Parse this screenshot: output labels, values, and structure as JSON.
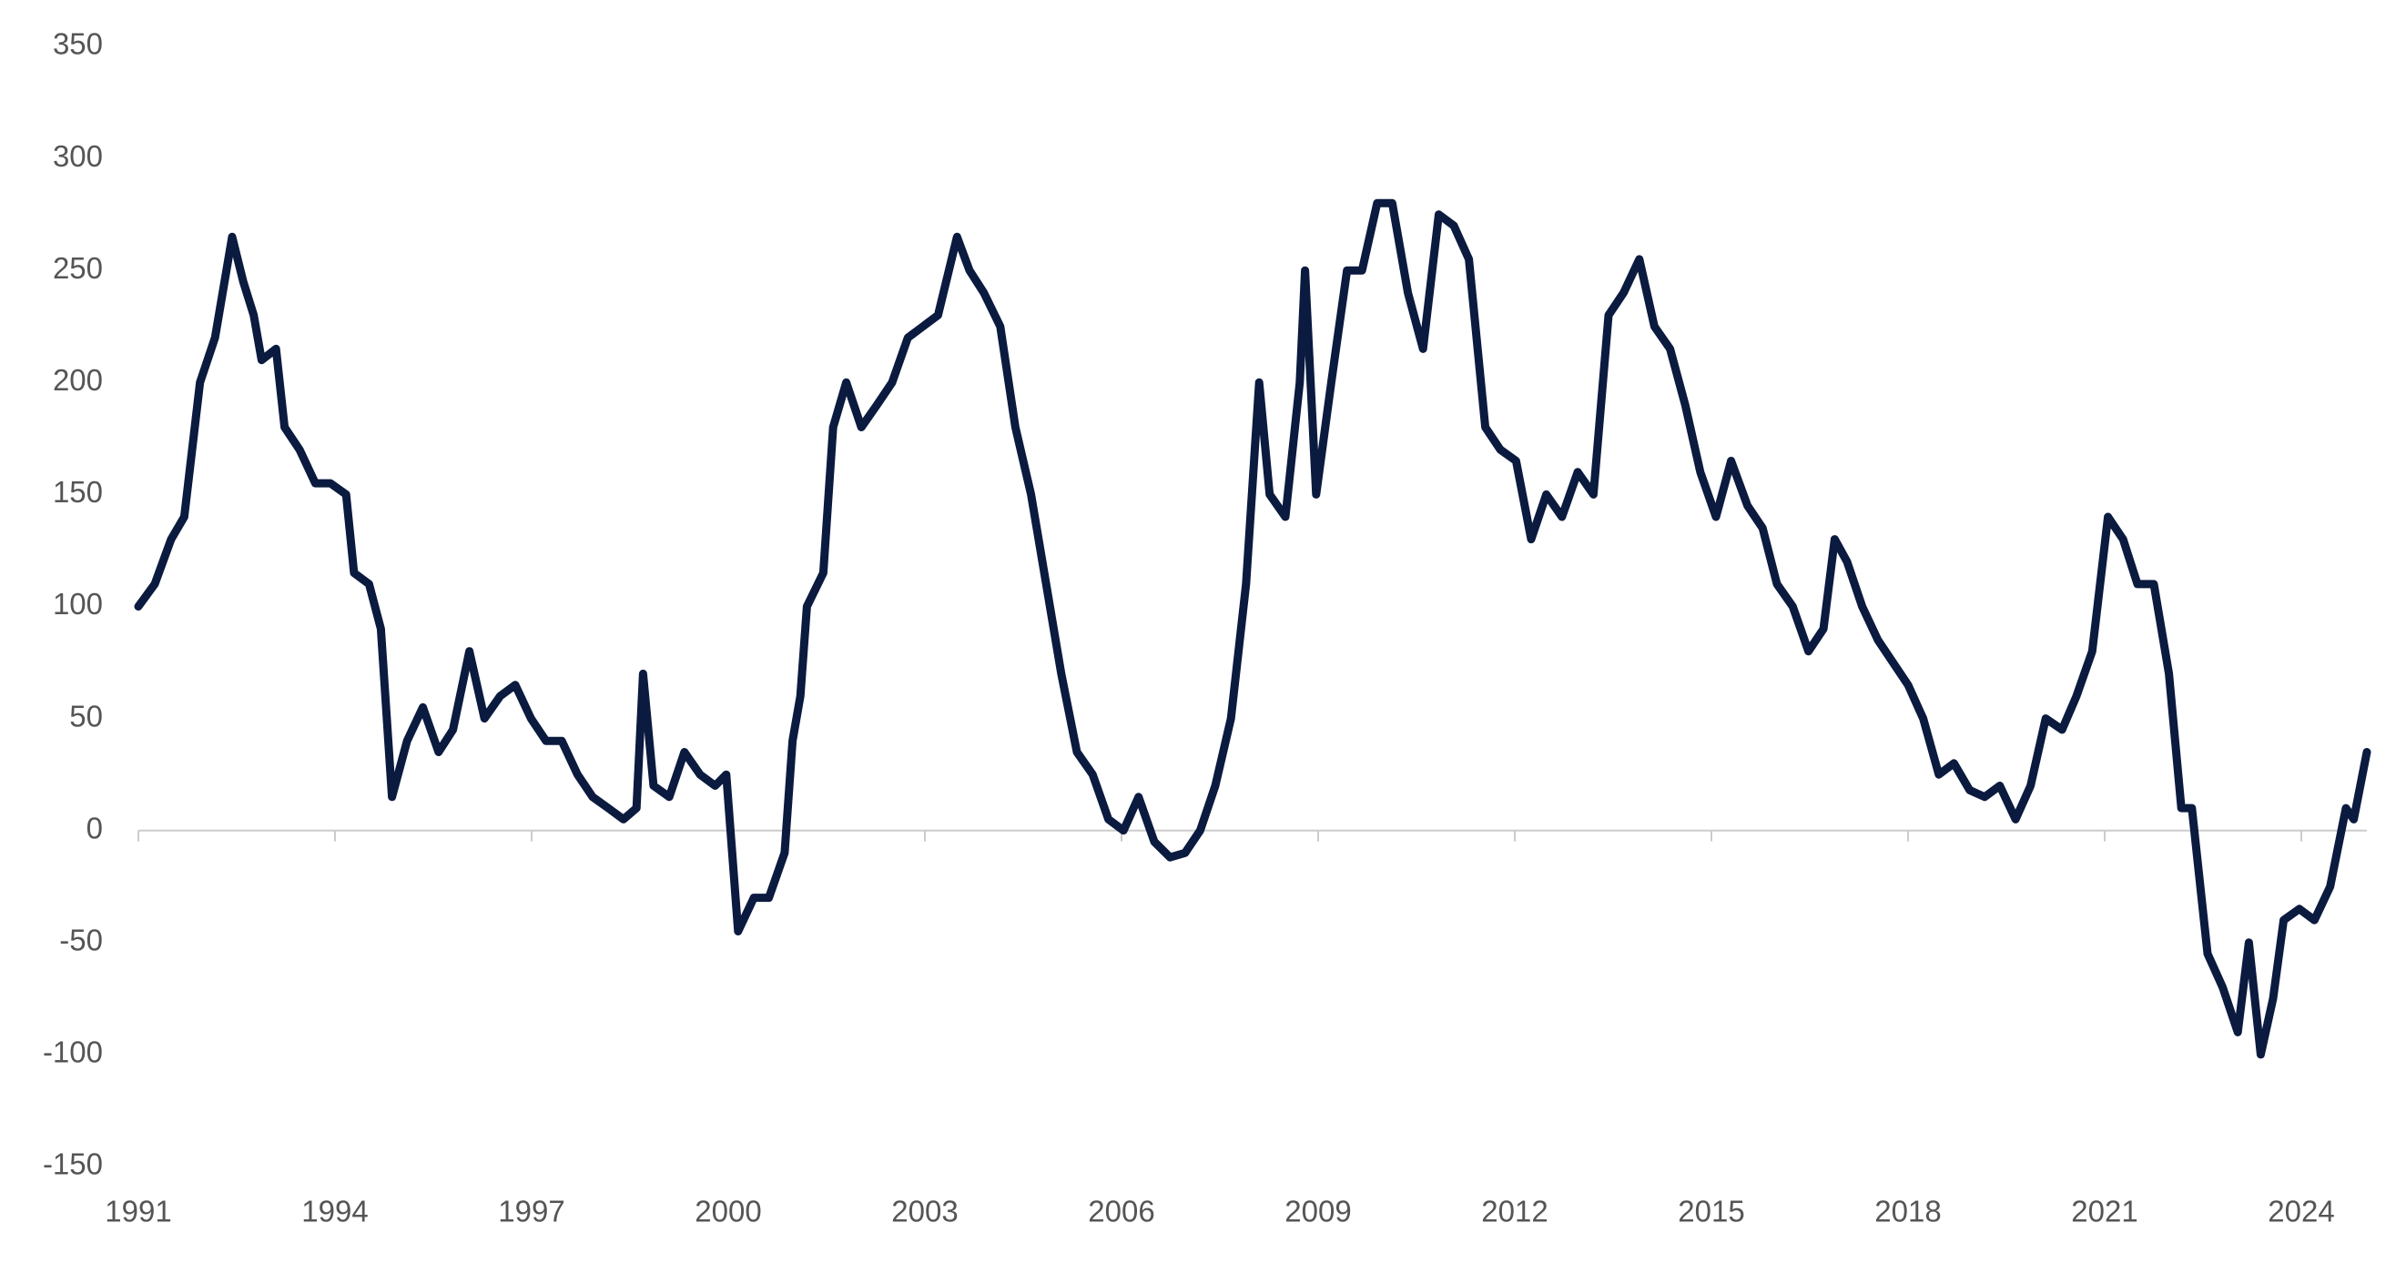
{
  "chart_data": {
    "type": "line",
    "color": "#0b1a3f",
    "xlim": [
      1991,
      2025
    ],
    "xticks": [
      1991,
      1994,
      1997,
      2000,
      2003,
      2006,
      2009,
      2012,
      2015,
      2018,
      2021,
      2024
    ],
    "ylim": [
      -150,
      350
    ],
    "yticks": [
      -150,
      -100,
      -50,
      0,
      50,
      100,
      150,
      200,
      250,
      300,
      350
    ],
    "grid": false,
    "x": [
      1991.0,
      1991.25,
      1991.5,
      1991.7,
      1991.94,
      1992.17,
      1992.43,
      1992.6,
      1992.76,
      1992.88,
      1993.1,
      1993.23,
      1993.46,
      1993.7,
      1993.93,
      1994.17,
      1994.29,
      1994.52,
      1994.7,
      1994.87,
      1995.1,
      1995.34,
      1995.58,
      1995.8,
      1996.05,
      1996.28,
      1996.52,
      1996.75,
      1996.99,
      1997.22,
      1997.46,
      1997.7,
      1997.93,
      1998.17,
      1998.4,
      1998.6,
      1998.7,
      1998.86,
      1999.1,
      1999.33,
      1999.57,
      1999.8,
      1999.97,
      2000.15,
      2000.39,
      2000.62,
      2000.86,
      2000.98,
      2001.1,
      2001.2,
      2001.45,
      2001.6,
      2001.8,
      2002.03,
      2002.27,
      2002.5,
      2002.74,
      2002.97,
      2003.2,
      2003.49,
      2003.68,
      2003.9,
      2004.15,
      2004.38,
      2004.62,
      2004.85,
      2005.08,
      2005.32,
      2005.56,
      2005.8,
      2006.03,
      2006.26,
      2006.5,
      2006.74,
      2006.97,
      2007.2,
      2007.43,
      2007.67,
      2007.9,
      2008.1,
      2008.26,
      2008.5,
      2008.72,
      2008.8,
      2008.97,
      2009.2,
      2009.44,
      2009.67,
      2009.9,
      2010.13,
      2010.37,
      2010.6,
      2010.84,
      2011.07,
      2011.3,
      2011.55,
      2011.78,
      2012.02,
      2012.25,
      2012.48,
      2012.72,
      2012.96,
      2013.2,
      2013.43,
      2013.66,
      2013.9,
      2014.13,
      2014.37,
      2014.6,
      2014.83,
      2015.07,
      2015.3,
      2015.55,
      2015.78,
      2016.0,
      2016.24,
      2016.48,
      2016.71,
      2016.88,
      2017.07,
      2017.3,
      2017.54,
      2017.77,
      2018.0,
      2018.23,
      2018.47,
      2018.7,
      2018.94,
      2019.17,
      2019.4,
      2019.64,
      2019.87,
      2020.1,
      2020.35,
      2020.57,
      2020.81,
      2021.05,
      2021.28,
      2021.5,
      2021.75,
      2021.98,
      2022.17,
      2022.33,
      2022.57,
      2022.8,
      2023.03,
      2023.2,
      2023.38,
      2023.57,
      2023.73,
      2023.97,
      2024.2,
      2024.44,
      2024.68,
      2024.8,
      2025.0
    ],
    "values": [
      100,
      110,
      130,
      140,
      200,
      220,
      265,
      245,
      230,
      210,
      215,
      180,
      170,
      155,
      155,
      150,
      115,
      110,
      90,
      15,
      40,
      55,
      35,
      45,
      80,
      50,
      60,
      65,
      50,
      40,
      40,
      25,
      15,
      10,
      5,
      10,
      70,
      20,
      15,
      35,
      25,
      20,
      25,
      -45,
      -30,
      -30,
      -10,
      40,
      60,
      100,
      115,
      180,
      200,
      180,
      190,
      200,
      220,
      225,
      230,
      265,
      250,
      240,
      225,
      180,
      150,
      110,
      70,
      35,
      25,
      5,
      0,
      15,
      -5,
      -12,
      -10,
      0,
      20,
      50,
      110,
      200,
      150,
      140,
      200,
      250,
      150,
      200,
      250,
      250,
      280,
      280,
      240,
      215,
      275,
      270,
      255,
      180,
      170,
      165,
      130,
      150,
      140,
      160,
      150,
      230,
      240,
      255,
      225,
      215,
      190,
      160,
      140,
      165,
      145,
      135,
      110,
      100,
      80,
      90,
      130,
      120,
      100,
      85,
      75,
      65,
      50,
      25,
      30,
      18,
      15,
      20,
      5,
      20,
      50,
      45,
      60,
      80,
      140,
      130,
      110,
      110,
      70,
      10,
      10,
      -55,
      -70,
      -90,
      -50,
      -100,
      -75,
      -40,
      -35,
      -40,
      -25,
      10,
      5,
      35
    ]
  }
}
